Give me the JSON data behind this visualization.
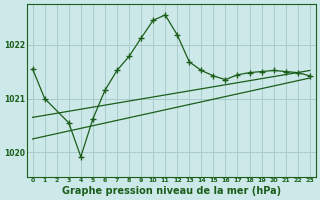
{
  "background_color": "#cce8e8",
  "grid_color": "#aacccc",
  "line_color": "#1a5e1a",
  "marker_color": "#1a5e1a",
  "xlabel": "Graphe pression niveau de la mer (hPa)",
  "xlabel_fontsize": 7,
  "yticks": [
    1020,
    1021,
    1022
  ],
  "xticks": [
    0,
    1,
    2,
    3,
    4,
    5,
    6,
    7,
    8,
    9,
    10,
    11,
    12,
    13,
    14,
    15,
    16,
    17,
    18,
    19,
    20,
    21,
    22,
    23
  ],
  "xlim": [
    -0.5,
    23.5
  ],
  "ylim": [
    1019.55,
    1022.75
  ],
  "main_x": [
    0,
    1,
    3,
    4,
    5,
    6,
    7,
    8,
    9,
    10,
    11,
    12,
    13,
    14,
    15,
    16,
    17,
    18,
    19,
    20,
    21,
    22,
    23
  ],
  "main_y": [
    1021.55,
    1021.0,
    1020.55,
    1019.92,
    1020.62,
    1021.15,
    1021.52,
    1021.78,
    1022.12,
    1022.45,
    1022.55,
    1022.18,
    1021.68,
    1021.52,
    1021.42,
    1021.35,
    1021.44,
    1021.48,
    1021.5,
    1021.52,
    1021.5,
    1021.48,
    1021.42
  ],
  "trend1_x": [
    0,
    23
  ],
  "trend1_y": [
    1020.25,
    1021.38
  ],
  "trend2_x": [
    0,
    23
  ],
  "trend2_y": [
    1020.65,
    1021.52
  ],
  "marker_size": 4.5
}
